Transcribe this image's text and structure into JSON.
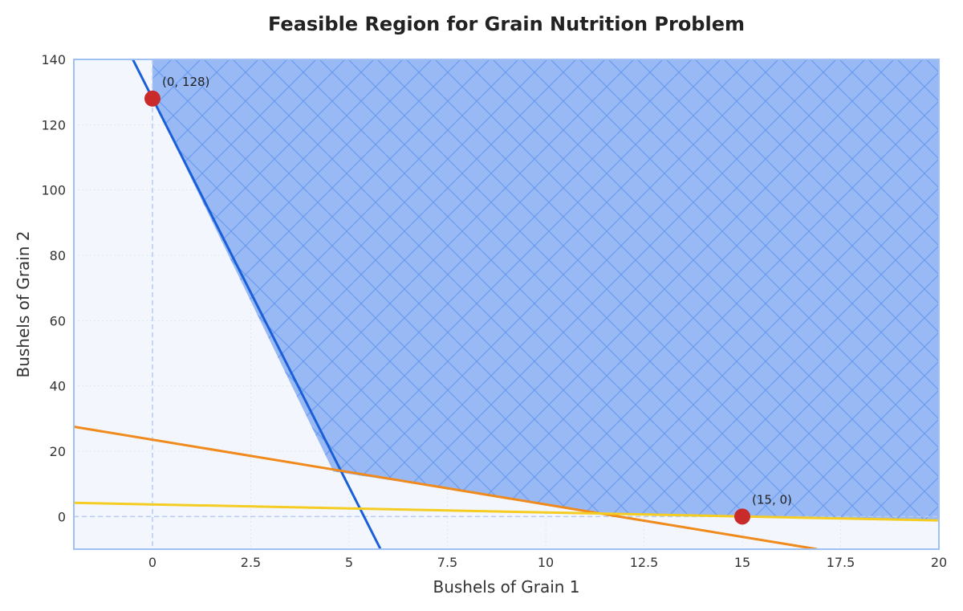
{
  "chart_data": {
    "type": "line",
    "title": "Feasible Region for Grain Nutrition Problem",
    "xlabel": "Bushels of Grain 1",
    "ylabel": "Bushels of Grain 2",
    "xlim": [
      -2,
      20
    ],
    "ylim": [
      -10,
      140
    ],
    "x_ticks": [
      0,
      2.5,
      5,
      7.5,
      10,
      12.5,
      15,
      17.5,
      20
    ],
    "x_tick_labels": [
      "0",
      "2.5",
      "5",
      "7.5",
      "10",
      "12.5",
      "15",
      "17.5",
      "20"
    ],
    "y_ticks": [
      0,
      20,
      40,
      60,
      80,
      100,
      120,
      140
    ],
    "y_tick_labels": [
      "0",
      "20",
      "40",
      "60",
      "80",
      "100",
      "120",
      "140"
    ],
    "grid": true,
    "lines": [
      {
        "color": "#1a5fd8",
        "points": [
          [
            -0.5,
            140
          ],
          [
            5.8,
            -10
          ]
        ]
      },
      {
        "color": "#f08a1c",
        "points": [
          [
            -2,
            27.5
          ],
          [
            16.9,
            -10
          ]
        ]
      },
      {
        "color": "#f5cc22",
        "points": [
          [
            -2,
            4.2
          ],
          [
            20,
            -1.2
          ]
        ]
      }
    ],
    "feasible_region": {
      "fill": "#99b9f5",
      "hatch": "#6c9bee",
      "vertices": [
        [
          0,
          140
        ],
        [
          0,
          128
        ],
        [
          4.6,
          13.8
        ],
        [
          11.6,
          0.9
        ],
        [
          20,
          -1.2
        ],
        [
          20,
          140
        ]
      ]
    },
    "points": [
      {
        "x": 0,
        "y": 128,
        "label": "(0, 128)",
        "color": "#c92a2a"
      },
      {
        "x": 15,
        "y": 0,
        "label": "(15, 0)",
        "color": "#c92a2a"
      }
    ],
    "reference_lines": {
      "x0": true,
      "y0": true,
      "color": "#b8ccf0"
    },
    "colors": {
      "plot_bg": "#f3f7fd",
      "frame": "#9ec0f2"
    }
  }
}
